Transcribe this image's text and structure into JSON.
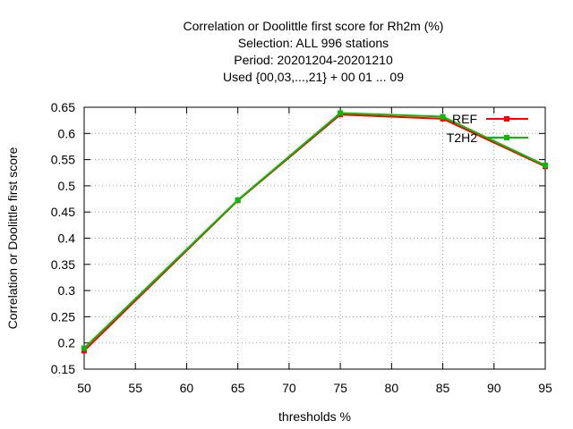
{
  "chart_data": {
    "type": "line",
    "title": [
      "Correlation or Doolittle first score  for Rh2m (%)",
      "Selection: ALL    996 stations",
      "Period: 20201204-20201210",
      "Used {00,03,...,21} + 00 01 ... 09"
    ],
    "xlabel": "thresholds %",
    "ylabel": "Correlation or Doolittle first score",
    "xlim": [
      50,
      95
    ],
    "ylim": [
      0.15,
      0.65
    ],
    "xticks": [
      50,
      55,
      60,
      65,
      70,
      75,
      80,
      85,
      90,
      95
    ],
    "yticks": [
      0.15,
      0.2,
      0.25,
      0.3,
      0.35,
      0.4,
      0.45,
      0.5,
      0.55,
      0.6,
      0.65
    ],
    "ytick_labels": [
      "0.15",
      "0.2",
      "0.25",
      "0.3",
      "0.35",
      "0.4",
      "0.45",
      "0.5",
      "0.55",
      "0.6",
      "0.65"
    ],
    "grid": true,
    "legend_position": "top-right",
    "series": [
      {
        "name": "REF",
        "color": "#ff0000",
        "x": [
          50,
          65,
          75,
          85,
          95
        ],
        "y": [
          0.185,
          0.472,
          0.636,
          0.628,
          0.537
        ]
      },
      {
        "name": "T2H2",
        "color": "#00c000",
        "x": [
          50,
          65,
          75,
          85,
          95
        ],
        "y": [
          0.19,
          0.473,
          0.639,
          0.632,
          0.539
        ]
      }
    ]
  }
}
